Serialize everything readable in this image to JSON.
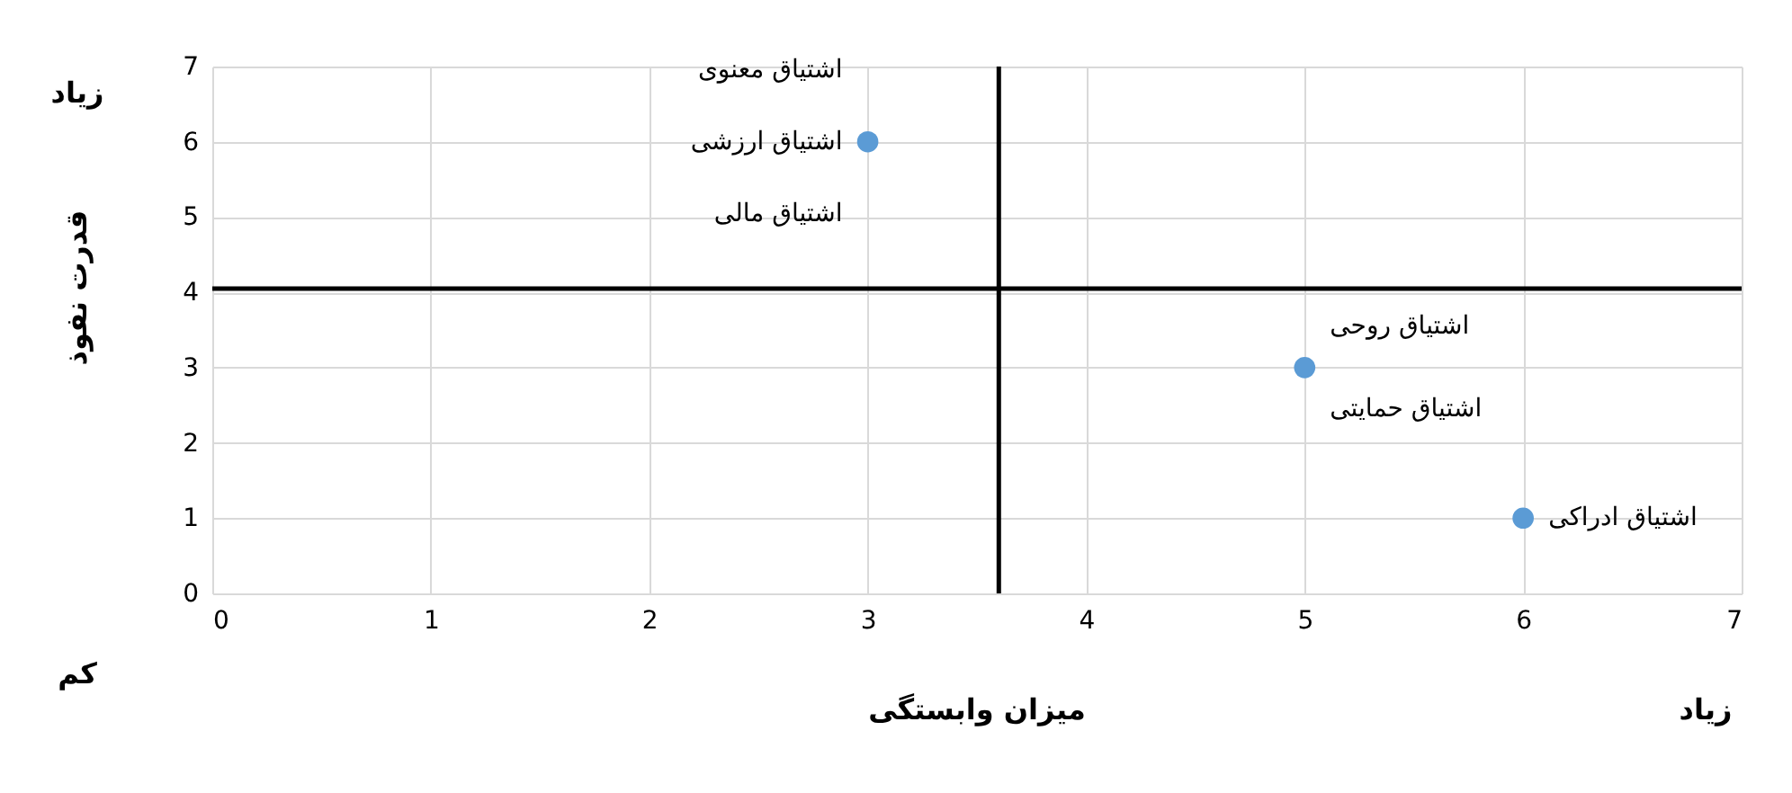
{
  "chart_data": {
    "type": "scatter",
    "xlabel": "میزان وابستگی",
    "ylabel": "قدرت نفوذ",
    "x": [
      3,
      5,
      6
    ],
    "values": [
      6,
      3,
      1
    ],
    "color": "#5b9bd5",
    "marker": "circle",
    "xlim": [
      0,
      7
    ],
    "ylim": [
      0,
      7
    ],
    "xticks": [
      0,
      1,
      2,
      3,
      4,
      5,
      6,
      7
    ],
    "yticks": [
      0,
      1,
      2,
      3,
      4,
      5,
      6,
      7
    ],
    "grid": true,
    "ref_lines": [
      {
        "axis": "y",
        "value": 4.05,
        "color": "#000000"
      },
      {
        "axis": "x",
        "value": 3.6,
        "color": "#000000"
      }
    ],
    "annotations": [
      {
        "text": "اشتیاق معنوی",
        "x": 3,
        "y": 6
      },
      {
        "text": "اشتیاق ارزشی",
        "x": 3,
        "y": 6
      },
      {
        "text": "اشتیاق مالی",
        "x": 3,
        "y": 6
      },
      {
        "text": "اشتیاق روحی",
        "x": 5,
        "y": 3
      },
      {
        "text": "اشتیاق حمایتی",
        "x": 5,
        "y": 3
      },
      {
        "text": "اشتیاق ادراکی",
        "x": 6,
        "y": 1
      },
      "زیاد",
      "کم",
      "زیاد"
    ]
  }
}
